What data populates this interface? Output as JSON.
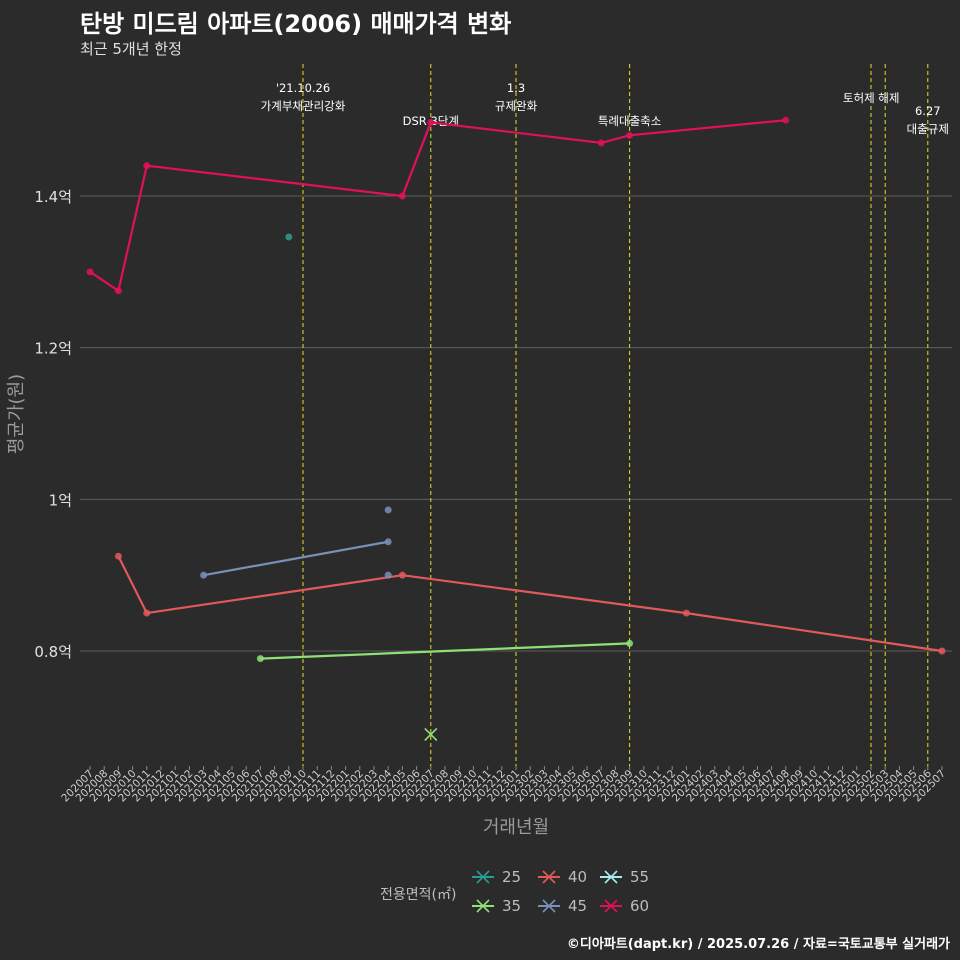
{
  "title": "탄방 미드림 아파트(2006) 매매가격 변화",
  "subtitle": "최근 5개년 한정",
  "footer": "©디아파트(dapt.kr) / 2025.07.26 / 자료=국토교통부 실거래가",
  "colors": {
    "background": "#2b2b2b",
    "grid": "#5e5e5e",
    "policy_line": "#e8e020",
    "s25": "#2a9d8f",
    "s35": "#90e07a",
    "s40": "#e05a5a",
    "s45": "#7891b8",
    "s55": "#a8ecec",
    "s60": "#e0105a"
  },
  "chart_data": {
    "type": "line",
    "title": "탄방 미드림 아파트(2006) 매매가격 변화",
    "subtitle": "최근 5개년 한정",
    "xlabel": "거래년월",
    "ylabel": "평균가(원)",
    "ylim": [
      0.65,
      1.57
    ],
    "yticks": [
      0.8,
      1.0,
      1.2,
      1.4
    ],
    "ytick_labels": [
      "0.8억",
      "1억",
      "1.2억",
      "1.4억"
    ],
    "categories": [
      "202007",
      "202008",
      "202009",
      "202010",
      "202011",
      "202012",
      "202101",
      "202102",
      "202103",
      "202104",
      "202105",
      "202106",
      "202107",
      "202108",
      "202109",
      "202110",
      "202111",
      "202112",
      "202201",
      "202202",
      "202203",
      "202204",
      "202205",
      "202206",
      "202207",
      "202208",
      "202209",
      "202210",
      "202211",
      "202212",
      "202301",
      "202302",
      "202303",
      "202304",
      "202305",
      "202306",
      "202307",
      "202308",
      "202309",
      "202310",
      "202311",
      "202312",
      "202401",
      "202402",
      "202403",
      "202404",
      "202405",
      "202406",
      "202407",
      "202408",
      "202409",
      "202410",
      "202411",
      "202412",
      "202501",
      "202502",
      "202503",
      "202504",
      "202505",
      "202506",
      "202507"
    ],
    "legend_title": "전용면적(㎡)",
    "series": [
      {
        "name": "25",
        "color_key": "s25",
        "points": [
          [
            "202109",
            1.346
          ]
        ],
        "connected": false
      },
      {
        "name": "35",
        "color_key": "s35",
        "points": [
          [
            "202107",
            0.79
          ],
          [
            "202309",
            0.81
          ]
        ],
        "connected": true,
        "markers": [
          [
            "202207",
            0.69
          ]
        ]
      },
      {
        "name": "40",
        "color_key": "s40",
        "points": [
          [
            "202009",
            0.925
          ],
          [
            "202011",
            0.85
          ],
          [
            "202205",
            0.9
          ],
          [
            "202401",
            0.85
          ],
          [
            "202507",
            0.8
          ]
        ],
        "connected": true
      },
      {
        "name": "45",
        "color_key": "s45",
        "points": [
          [
            "202103",
            0.9
          ],
          [
            "202204",
            0.944
          ]
        ],
        "connected": true,
        "extra_points": [
          [
            "202204",
            0.986
          ],
          [
            "202204",
            0.9
          ]
        ]
      },
      {
        "name": "55",
        "color_key": "s55",
        "points": [],
        "connected": false
      },
      {
        "name": "60",
        "color_key": "s60",
        "points": [
          [
            "202007",
            1.3
          ],
          [
            "202009",
            1.275
          ],
          [
            "202011",
            1.44
          ],
          [
            "202205",
            1.4
          ],
          [
            "202207",
            1.497
          ],
          [
            "202307",
            1.47
          ],
          [
            "202309",
            1.48
          ],
          [
            "202408",
            1.5
          ]
        ],
        "connected": true
      }
    ],
    "annotations": [
      {
        "month": "202110",
        "lines": [
          "'21.10.26",
          "가계부채관리강화"
        ],
        "row": 0
      },
      {
        "month": "202207",
        "lines": [
          "DSR 3단계"
        ],
        "row": 2
      },
      {
        "month": "202301",
        "lines": [
          "1.3",
          "규제완화"
        ],
        "row": 0
      },
      {
        "month": "202309",
        "lines": [
          "특례대출축소"
        ],
        "row": 2
      },
      {
        "month": "202502",
        "lines": [],
        "row": 0
      },
      {
        "month": "202503",
        "lines": [
          "토허제 해제"
        ],
        "row": 1
      },
      {
        "month": "202506",
        "lines": [
          "6.27",
          "대출규제"
        ],
        "row": 3
      }
    ]
  }
}
